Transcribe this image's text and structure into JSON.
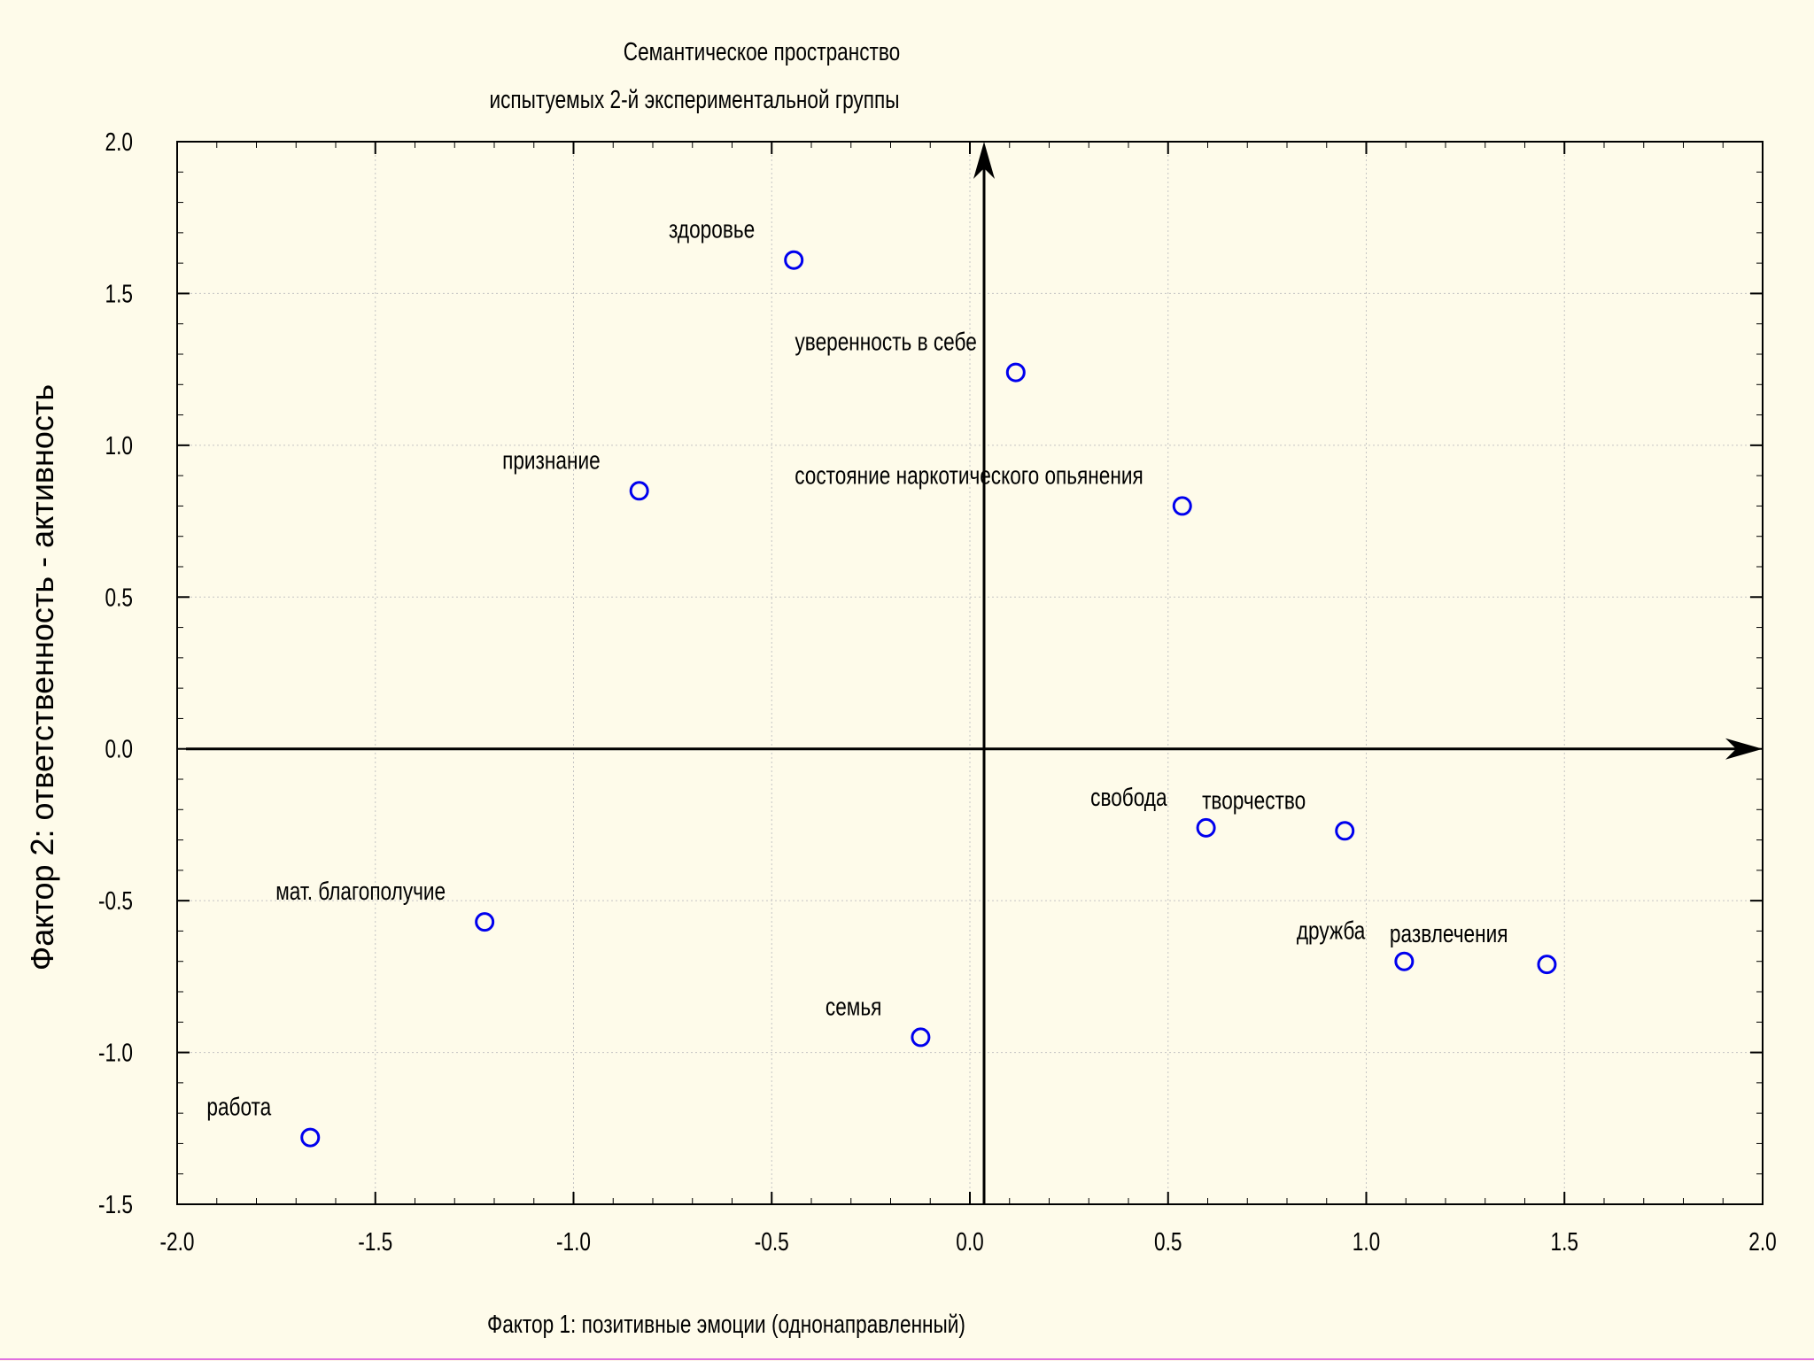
{
  "chart_data": {
    "type": "scatter",
    "title_line1": "Семантическое пространство",
    "title_line2": "испытуемых 2-й экспериментальной группы",
    "xlabel": "Фактор 1: позитивные эмоции (однонаправленный)",
    "ylabel": "Фактор 2: ответственность - активность",
    "xlim": [
      -2.0,
      2.0
    ],
    "ylim": [
      -1.5,
      2.0
    ],
    "x_ticks": [
      "-2.0",
      "-1.5",
      "-1.0",
      "-0.5",
      "0.0",
      "0.5",
      "1.0",
      "1.5",
      "2.0"
    ],
    "y_ticks": [
      "2.0",
      "1.5",
      "1.0",
      "0.5",
      "0.0",
      "-0.5",
      "-1.0",
      "-1.5"
    ],
    "grid": true,
    "marker_color": "#0000ee",
    "points": [
      {
        "label": "здоровье",
        "x": -0.48,
        "y": 1.61
      },
      {
        "label": "уверенность в себе",
        "x": 0.08,
        "y": 1.24
      },
      {
        "label": "признание",
        "x": -0.87,
        "y": 0.85
      },
      {
        "label": "состояние наркотического опьянения",
        "x": 0.5,
        "y": 0.8
      },
      {
        "label": "свобода",
        "x": 0.56,
        "y": -0.26
      },
      {
        "label": "творчество",
        "x": 0.91,
        "y": -0.27
      },
      {
        "label": "дружба",
        "x": 1.06,
        "y": -0.7
      },
      {
        "label": "развлечения",
        "x": 1.42,
        "y": -0.71
      },
      {
        "label": "мат. благополучие",
        "x": -1.26,
        "y": -0.57
      },
      {
        "label": "семья",
        "x": -0.16,
        "y": -0.95
      },
      {
        "label": "работа",
        "x": -1.7,
        "y": -1.28
      }
    ]
  }
}
